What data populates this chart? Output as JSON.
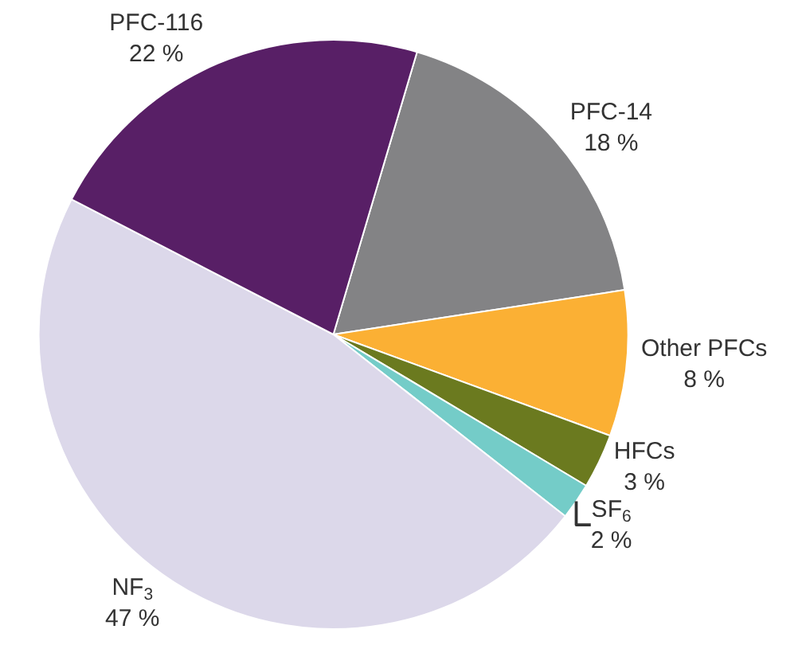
{
  "chart_data": {
    "type": "pie",
    "categories": [
      "PFC-14",
      "Other PFCs",
      "HFCs",
      "SF$_{6}$",
      "NF$_{3}$",
      "PFC-116"
    ],
    "values": [
      18,
      8,
      3,
      2,
      47,
      22
    ],
    "value_labels": [
      "18 %",
      "8 %",
      "3 %",
      "2 %",
      "47 %",
      "22 %"
    ],
    "colors": [
      "#838385",
      "#fbb034",
      "#6b7a1f",
      "#74ccc8",
      "#dcd8ea",
      "#581f66"
    ],
    "legend": false
  }
}
